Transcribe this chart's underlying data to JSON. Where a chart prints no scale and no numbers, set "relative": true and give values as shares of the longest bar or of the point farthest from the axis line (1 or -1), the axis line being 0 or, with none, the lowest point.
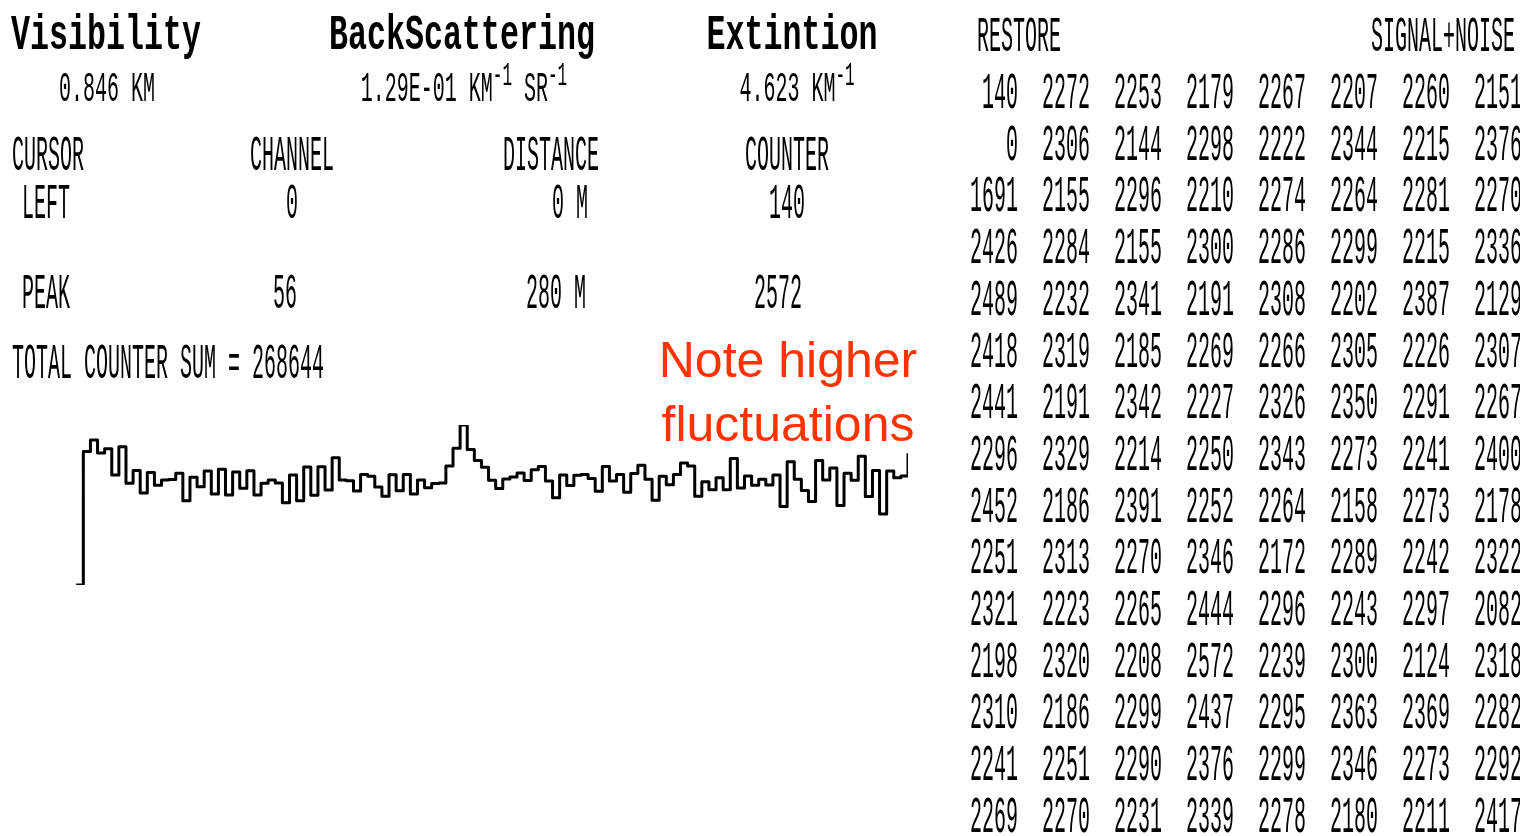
{
  "chart_data": {
    "type": "step",
    "color": "#000000",
    "categories": [
      null,
      null,
      null,
      null,
      null,
      null,
      null,
      null,
      null,
      null,
      null,
      null,
      null,
      null,
      null,
      null,
      null,
      null,
      null,
      null,
      null,
      null,
      null,
      null,
      null,
      null,
      null,
      null,
      null,
      null,
      null,
      null,
      null,
      null,
      null,
      null,
      null,
      null,
      null,
      null,
      null,
      null,
      null,
      null,
      null,
      null,
      null,
      null,
      null,
      null,
      null,
      null,
      null,
      null,
      null,
      null,
      null,
      null,
      null,
      null,
      null,
      null,
      null,
      null,
      null,
      null,
      null,
      null,
      null,
      null,
      null,
      null,
      null,
      null,
      null,
      null,
      null,
      null,
      null,
      null,
      null,
      null,
      null,
      null,
      null,
      null,
      null,
      null,
      null,
      null,
      null,
      null,
      null,
      null,
      null,
      null,
      null,
      null,
      null,
      null,
      null,
      null,
      null,
      null,
      null,
      null,
      null,
      null,
      null,
      null,
      null,
      null,
      null,
      null,
      null,
      null,
      null,
      null,
      null,
      null
    ],
    "relative": true,
    "values": [
      null,
      null,
      0,
      0.834,
      0.906,
      0.825,
      0.851,
      0.687,
      0.864,
      0.636,
      0.715,
      0.575,
      0.703,
      0.624,
      0.656,
      0.659,
      0.698,
      0.527,
      0.673,
      0.614,
      0.713,
      0.568,
      0.724,
      0.562,
      0.706,
      0.604,
      0.714,
      0.562,
      0.636,
      0.657,
      0.638,
      0.514,
      0.687,
      0.527,
      0.738,
      0.561,
      0.739,
      0.594,
      0.795,
      0.657,
      0.652,
      0.587,
      0.69,
      0.68,
      0.613,
      0.554,
      0.689,
      0.589,
      0.691,
      0.568,
      0.656,
      0.608,
      0.635,
      0.637,
      0.743,
      0.855,
      1,
      0.847,
      0.778,
      0.736,
      0.654,
      0.603,
      0.662,
      0.675,
      0.7,
      0.653,
      0.721,
      0.74,
      0.65,
      0.546,
      0.687,
      0.622,
      0.686,
      0.69,
      0.666,
      0.586,
      0.741,
      0.65,
      0.69,
      0.58,
      0.697,
      0.748,
      0.661,
      0.53,
      0.679,
      0.627,
      0.691,
      0.763,
      0.743,
      0.555,
      0.646,
      0.595,
      0.67,
      0.595,
      0.79,
      0.607,
      0.681,
      0.624,
      0.661,
      0.625,
      0.688,
      0.491,
      0.77,
      0.661,
      0.59,
      0.522,
      0.778,
      0.657,
      0.732,
      0.497,
      0.699,
      0.654,
      0.805,
      0.553,
      0.716,
      0.444,
      0.712,
      0.671,
      0.682,
      0.824
    ],
    "annotations": [
      "Visibility",
      "0.846 KM",
      "BackScattering",
      "1.29E-01 KM$^{-1}$ SR$^{-1}$",
      "Extintion",
      "4.623 KM$^{-1}$",
      "CURSOR",
      "CHANNEL",
      "DISTANCE",
      "COUNTER",
      "LEFT",
      "0",
      "0 M",
      "140",
      "PEAK",
      "56",
      "280 M",
      "2572",
      "TOTAL COUNTER SUM = 268644",
      "RESTORE",
      "SIGNAL+NOISE",
      "Note higher fluctuations",
      "140",
      "0",
      "1691",
      "2426",
      "2489",
      "2418",
      "2441",
      "2296",
      "2452",
      "2251",
      "2321",
      "2198",
      "2310",
      "2241",
      "2269",
      "2272",
      "2306",
      "2155",
      "2284",
      "2232",
      "2319",
      "2191",
      "2329",
      "2186",
      "2313",
      "2223",
      "2320",
      "2186",
      "2251",
      "2270",
      "2253",
      "2144",
      "2296",
      "2155",
      "2341",
      "2185",
      "2342",
      "2214",
      "2391",
      "2270",
      "2265",
      "2208",
      "2299",
      "2290",
      "2231",
      "2179",
      "2298",
      "2210",
      "2300",
      "2191",
      "2269",
      "2227",
      "2250",
      "2252",
      "2346",
      "2444",
      "2572",
      "2437",
      "2376",
      "2339",
      "2267",
      "2222",
      "2274",
      "2286",
      "2308",
      "2266",
      "2326",
      "2343",
      "2264",
      "2172",
      "2296",
      "2239",
      "2295",
      "2299",
      "2278",
      "2207",
      "2344",
      "2264",
      "2299",
      "2202",
      "2305",
      "2350",
      "2273",
      "2158",
      "2289",
      "2243",
      "2300",
      "2363",
      "2346",
      "2180",
      "2260",
      "2215",
      "2281",
      "2215",
      "2387",
      "2226",
      "2291",
      "2241",
      "2273",
      "2242",
      "2297",
      "2124",
      "2369",
      "2273",
      "2211",
      "2151",
      "2376",
      "2270",
      "2336",
      "2129",
      "2307",
      "2267",
      "2400",
      "2178",
      "2322",
      "2082",
      "2318",
      "2282",
      "2292",
      "2417"
    ]
  }
}
